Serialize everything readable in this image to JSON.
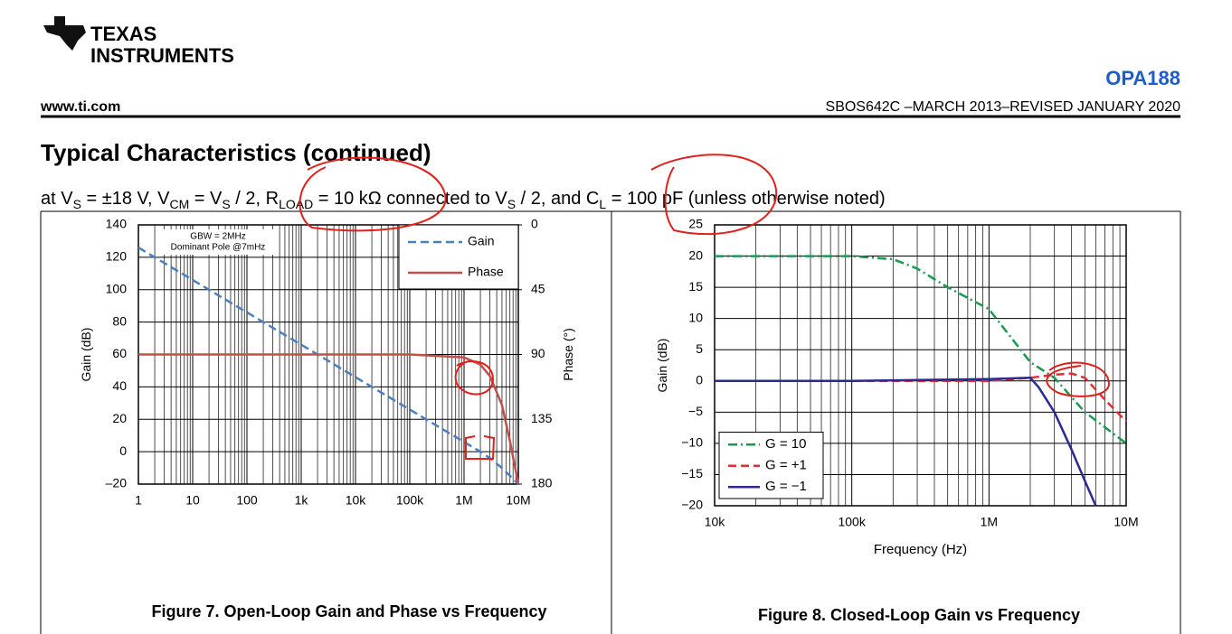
{
  "header": {
    "logo_line1": "TEXAS",
    "logo_line2": "INSTRUMENTS",
    "part_number": "OPA188",
    "website": "www.ti.com",
    "doc_id": "SBOS642C –MARCH 2013–REVISED JANUARY 2020"
  },
  "section_title": "Typical Characteristics (continued)",
  "conditions": [
    "at V",
    "S",
    " = ±18 V, V",
    "CM",
    " = V",
    "S",
    " / 2, R",
    "LOAD",
    " = 10 kΩ connected to V",
    "S",
    " / 2, and C",
    "L",
    " = 100 pF (unless otherwise noted)"
  ],
  "chart_data": [
    {
      "type": "line",
      "caption": "Figure 7. Open-Loop Gain and Phase vs Frequency",
      "ylabel": "Gain (dB)",
      "y2label": "Phase (°)",
      "x_scale": "log",
      "grid": true,
      "minor_grid": true,
      "legend": "upper right",
      "annotations": [
        "GBW = 2MHz",
        "Dominant Pole @7mHz"
      ],
      "xlim": [
        1,
        10000000
      ],
      "xticks": [
        1,
        10,
        100,
        {
          "value": 1000,
          "label": "1k"
        },
        {
          "value": 10000,
          "label": "10k"
        },
        {
          "value": 100000,
          "label": "100k"
        },
        {
          "value": 1000000,
          "label": "1M"
        },
        {
          "value": 10000000,
          "label": "10M"
        }
      ],
      "ylim": [
        -20,
        140
      ],
      "yticks": [
        {
          "value": -20,
          "label": "–20"
        },
        0,
        20,
        40,
        60,
        80,
        100,
        120,
        140
      ],
      "y2lim": [
        180,
        0
      ],
      "y2ticks": [
        0,
        45,
        90,
        135,
        180
      ],
      "series": [
        {
          "name": "Gain",
          "color": "#4a7fc1",
          "line_style": "dashed",
          "x": [
            1,
            10,
            100,
            1000,
            10000,
            100000,
            1000000,
            2000000,
            3000000,
            5000000,
            10000000
          ],
          "values": [
            126,
            106,
            86,
            66,
            46,
            26,
            6,
            0,
            -4,
            -10,
            -20
          ]
        },
        {
          "name": "Phase",
          "color": "#c0504d",
          "line_style": "solid",
          "axis": "y2",
          "x": [
            1,
            10,
            100,
            1000,
            10000,
            100000,
            1000000,
            2000000,
            3000000,
            5000000,
            7000000,
            10000000
          ],
          "values": [
            90,
            90,
            90,
            90,
            90,
            90,
            92,
            97,
            105,
            125,
            150,
            180
          ]
        }
      ]
    },
    {
      "type": "line",
      "caption": "Figure 8. Closed-Loop Gain vs Frequency",
      "xlabel": "Frequency (Hz)",
      "ylabel": "Gain (dB)",
      "x_scale": "log",
      "grid": true,
      "minor_grid": true,
      "legend": "lower left",
      "xlim": [
        10000,
        10000000
      ],
      "xticks": [
        {
          "value": 10000,
          "label": "10k"
        },
        {
          "value": 100000,
          "label": "100k"
        },
        {
          "value": 1000000,
          "label": "1M"
        },
        {
          "value": 10000000,
          "label": "10M"
        }
      ],
      "ylim": [
        -20,
        25
      ],
      "yticks": [
        {
          "value": -20,
          "label": "−20"
        },
        {
          "value": -15,
          "label": "−15"
        },
        {
          "value": -10,
          "label": "−10"
        },
        {
          "value": -5,
          "label": "−5"
        },
        0,
        5,
        10,
        15,
        20,
        25
      ],
      "series": [
        {
          "name": "G = 10",
          "color": "#1a9a50",
          "line_style": "dashdot",
          "x": [
            10000,
            30000,
            100000,
            200000,
            300000,
            500000,
            1000000,
            2000000,
            3000000,
            5000000,
            10000000
          ],
          "values": [
            20,
            20,
            20,
            19.5,
            18,
            15,
            11.5,
            3,
            0.5,
            -5,
            -10
          ]
        },
        {
          "name": "G = +1",
          "color": "#e03030",
          "line_style": "dashed",
          "x": [
            10000,
            100000,
            1000000,
            2000000,
            3000000,
            4000000,
            5000000,
            7000000,
            10000000
          ],
          "values": [
            0,
            0,
            0,
            0.5,
            1,
            1.2,
            0.5,
            -3,
            -6.5
          ]
        },
        {
          "name": "G = −1",
          "color": "#2a2a90",
          "line_style": "solid",
          "x": [
            10000,
            100000,
            1000000,
            2000000,
            2300000,
            3000000,
            4000000,
            5000000,
            6000000
          ],
          "values": [
            0,
            0,
            0.3,
            0.5,
            -1,
            -5,
            -11,
            -16,
            -20
          ]
        }
      ]
    }
  ]
}
